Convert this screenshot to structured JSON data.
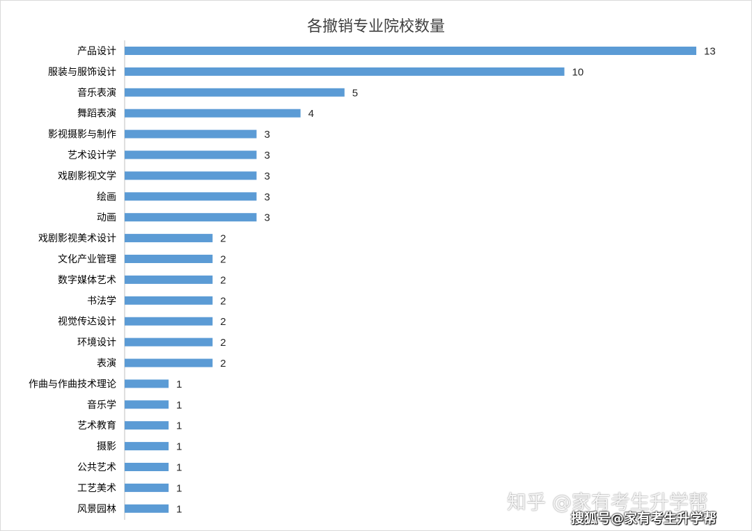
{
  "chart_data": {
    "type": "bar",
    "orientation": "horizontal",
    "title": "各撤销专业院校数量",
    "categories": [
      "产品设计",
      "服装与服饰设计",
      "音乐表演",
      "舞蹈表演",
      "影视摄影与制作",
      "艺术设计学",
      "戏剧影视文学",
      "绘画",
      "动画",
      "戏剧影视美术设计",
      "文化产业管理",
      "数字媒体艺术",
      "书法学",
      "视觉传达设计",
      "环境设计",
      "表演",
      "作曲与作曲技术理论",
      "音乐学",
      "艺术教育",
      "摄影",
      "公共艺术",
      "工艺美术",
      "风景园林"
    ],
    "values": [
      13,
      10,
      5,
      4,
      3,
      3,
      3,
      3,
      3,
      2,
      2,
      2,
      2,
      2,
      2,
      2,
      1,
      1,
      1,
      1,
      1,
      1,
      1
    ],
    "xlim": [
      0,
      13
    ],
    "grid": false,
    "legend": "none",
    "bar_color": "#5b9bd5",
    "data_labels": true
  },
  "watermarks": {
    "zhihu": "知乎 @家有考生升学帮",
    "sohu": "搜狐号@家有考生升学帮"
  }
}
